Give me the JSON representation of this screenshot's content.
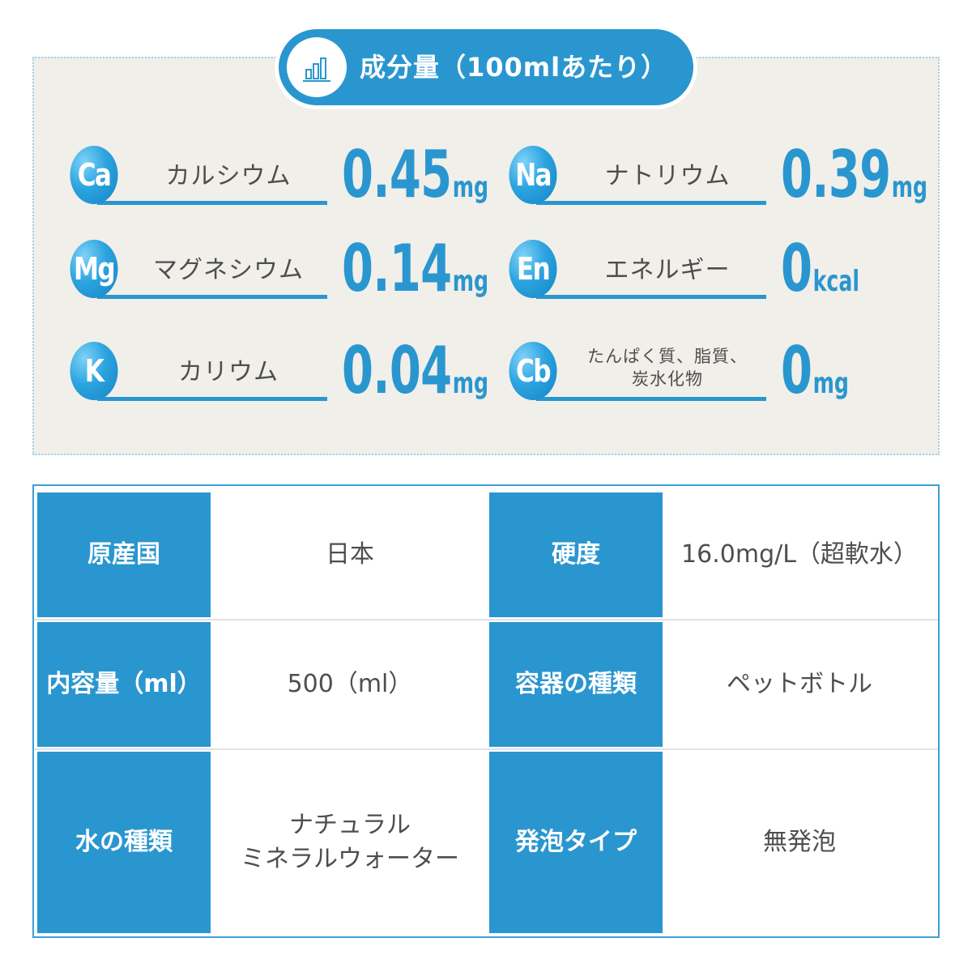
{
  "title": {
    "text": "成分量（100mlあたり）",
    "icon": "bar-chart-icon"
  },
  "nutrients": [
    {
      "symbol": "Ca",
      "label": "カルシウム",
      "value": "0.45",
      "unit": "mg"
    },
    {
      "symbol": "Na",
      "label": "ナトリウム",
      "value": "0.39",
      "unit": "mg"
    },
    {
      "symbol": "Mg",
      "label": "マグネシウム",
      "value": "0.14",
      "unit": "mg"
    },
    {
      "symbol": "En",
      "label": "エネルギー",
      "value": "0",
      "unit": "kcal"
    },
    {
      "symbol": "K",
      "label": "カリウム",
      "value": "0.04",
      "unit": "mg"
    },
    {
      "symbol": "Cb",
      "label": "たんぱく質、脂質、\n炭水化物",
      "value": "0",
      "unit": "mg"
    }
  ],
  "spec": {
    "rows": [
      [
        {
          "key": "原産国",
          "value": "日本"
        },
        {
          "key": "硬度",
          "value": "16.0mg/L（超軟水）"
        }
      ],
      [
        {
          "key": "内容量（ml）",
          "value": "500（ml）"
        },
        {
          "key": "容器の種類",
          "value": "ペットボトル"
        }
      ],
      [
        {
          "key": "水の種類",
          "value": "ナチュラル\nミネラルウォーター"
        },
        {
          "key": "発泡タイプ",
          "value": "無発泡"
        }
      ]
    ]
  },
  "colors": {
    "accent": "#2a96cf",
    "panel_bg": "#f1efe9",
    "text": "#4a4a4a"
  }
}
